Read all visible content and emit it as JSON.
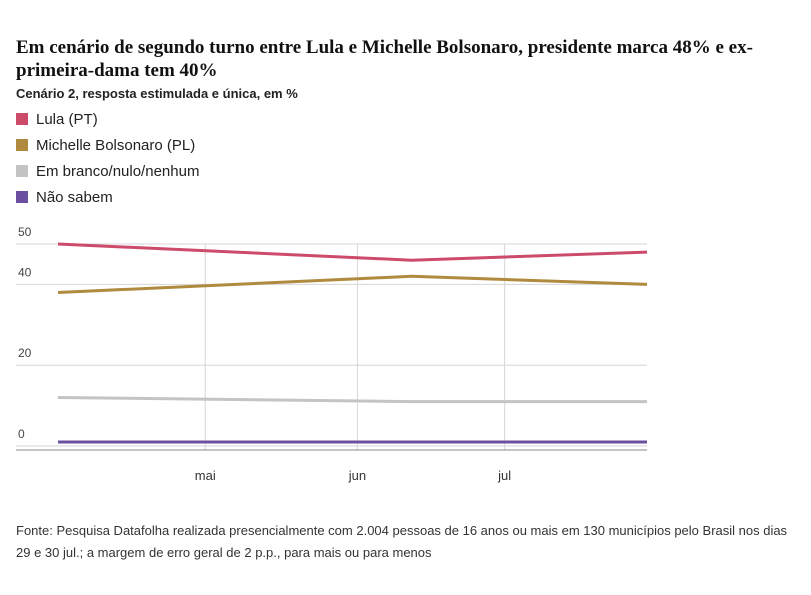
{
  "title": "Em cenário de segundo turno entre Lula e Michelle Bolsonaro, presidente marca 48% e ex-primeira-dama tem 40%",
  "subtitle": "Cenário 2, resposta estimulada e única, em %",
  "source": "Fonte: Pesquisa Datafolha realizada presencialmente com 2.004 pessoas de 16 anos ou mais em 130 municípios pelo Brasil nos dias 29 e 30 jul.; a margem de erro geral de 2 p.p., para mais ou para menos",
  "chart_data": {
    "type": "line",
    "title": "Em cenário de segundo turno entre Lula e Michelle Bolsonaro, presidente marca 48% e ex-primeira-dama tem 40%",
    "subtitle": "Cenário 2, resposta estimulada e única, em %",
    "x": [
      "2025-04-01",
      "2025-06-12",
      "2025-07-30"
    ],
    "x_ticks": [
      "mai",
      "jun",
      "jul"
    ],
    "x_range": [
      "2025-04-01",
      "2025-07-30"
    ],
    "y_ticks": [
      0,
      20,
      40,
      50
    ],
    "ylim": [
      0,
      50
    ],
    "grid": true,
    "legend_position": "top-left",
    "series": [
      {
        "name": "Lula (PT)",
        "color": "#cc4a6a",
        "values": [
          50,
          46,
          48
        ]
      },
      {
        "name": "Michelle Bolsonaro (PL)",
        "color": "#b08a3e",
        "values": [
          38,
          42,
          40
        ]
      },
      {
        "name": "Em branco/nulo/nenhum",
        "color": "#c4c4c4",
        "values": [
          12,
          11,
          11
        ]
      },
      {
        "name": "Não sabem",
        "color": "#6b4fa0",
        "values": [
          1,
          1,
          1
        ]
      }
    ]
  }
}
